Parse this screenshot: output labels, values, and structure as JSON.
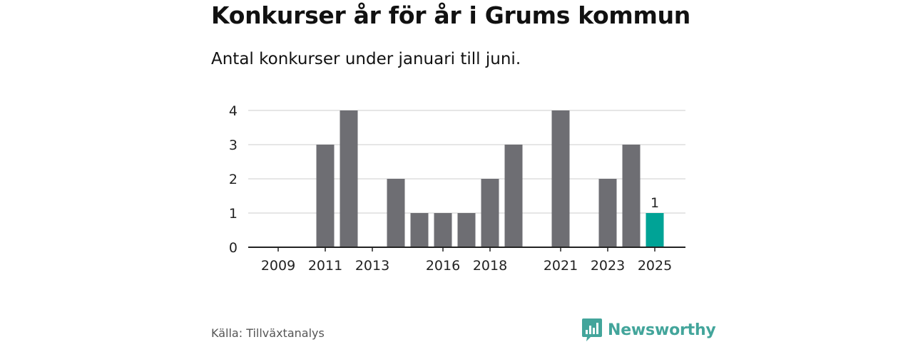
{
  "title": "Konkurser år för år i Grums kommun",
  "subtitle": "Antal konkurser under januari till juni.",
  "source": "Källa: Tillväxtanalys",
  "brand": "Newsworthy",
  "colors": {
    "bar": "#6e6e73",
    "highlight": "#00a396",
    "grid": "#dddddd",
    "axis": "#222222",
    "brand": "#43a59b"
  },
  "chart_data": {
    "type": "bar",
    "categories": [
      "2009",
      "2010",
      "2011",
      "2012",
      "2013",
      "2014",
      "2015",
      "2016",
      "2017",
      "2018",
      "2019",
      "2020",
      "2021",
      "2022",
      "2023",
      "2024",
      "2025"
    ],
    "values": [
      0,
      0,
      3,
      4,
      0,
      2,
      1,
      1,
      1,
      2,
      3,
      0,
      4,
      0,
      2,
      3,
      1
    ],
    "xtick_labels": [
      "2009",
      "2011",
      "2013",
      "2016",
      "2018",
      "2021",
      "2023",
      "2025"
    ],
    "yticks": [
      0,
      1,
      2,
      3,
      4
    ],
    "ylim": [
      0,
      4
    ],
    "highlight_category": "2025",
    "data_labels": [
      {
        "category": "2025",
        "text": "1"
      }
    ],
    "grid": true,
    "xlabel": "",
    "ylabel": ""
  }
}
